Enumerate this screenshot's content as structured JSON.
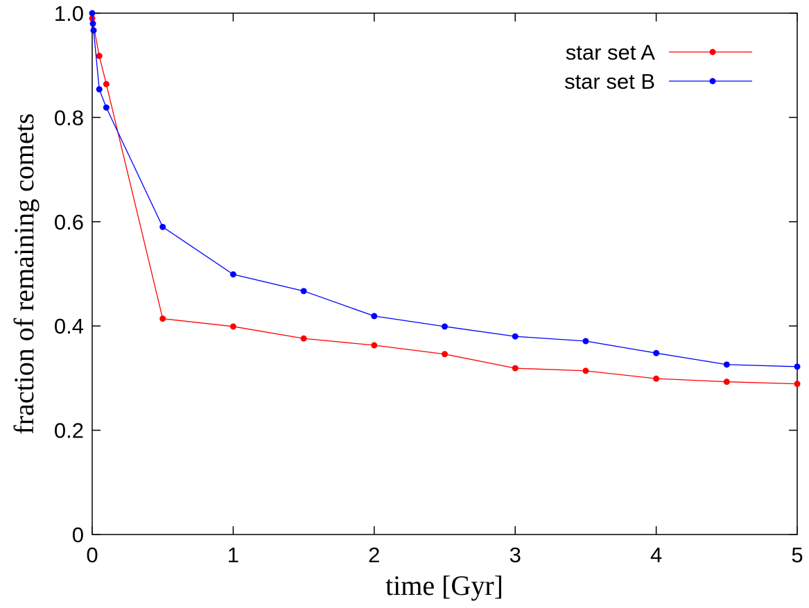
{
  "chart_data": {
    "type": "line",
    "xlabel": "time [Gyr]",
    "ylabel": "fraction of remaining comets",
    "xlim": [
      0,
      5
    ],
    "ylim": [
      0,
      1
    ],
    "xticks": [
      0,
      1,
      2,
      3,
      4,
      5
    ],
    "yticks": [
      0,
      0.2,
      0.4,
      0.6,
      0.8,
      {
        "value": 1,
        "label": "1.0"
      }
    ],
    "legend": "upper right",
    "series": [
      {
        "name": "star set A",
        "color": "#ff0000",
        "x": [
          0,
          0.05,
          0.1,
          0.5,
          1,
          1.5,
          2,
          2.5,
          3,
          3.5,
          4,
          4.5,
          5
        ],
        "values": [
          0.99,
          0.918,
          0.864,
          0.414,
          0.399,
          0.376,
          0.363,
          0.346,
          0.319,
          0.314,
          0.299,
          0.293,
          0.289
        ]
      },
      {
        "name": "star set B",
        "color": "#0000ff",
        "x": [
          0,
          0.005,
          0.01,
          0.05,
          0.1,
          0.5,
          1,
          1.5,
          2,
          2.5,
          3,
          3.5,
          4,
          4.5,
          5
        ],
        "values": [
          1.0,
          0.98,
          0.967,
          0.854,
          0.819,
          0.59,
          0.499,
          0.467,
          0.419,
          0.399,
          0.38,
          0.371,
          0.348,
          0.326,
          0.322
        ]
      }
    ]
  }
}
